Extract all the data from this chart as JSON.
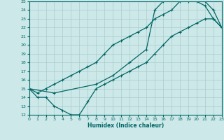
{
  "title": "",
  "xlabel": "Humidex (Indice chaleur)",
  "bg_color": "#cce8e8",
  "grid_color": "#aacccc",
  "line_color": "#006666",
  "xmin": 0,
  "xmax": 23,
  "ymin": 12,
  "ymax": 25,
  "line1_x": [
    0,
    1,
    2,
    3,
    4,
    5,
    6,
    7,
    8,
    9,
    10,
    11,
    12,
    13,
    14,
    15,
    16,
    17,
    18,
    19,
    20,
    21,
    22,
    23
  ],
  "line1_y": [
    15,
    14,
    14,
    13,
    12.5,
    12,
    12,
    13.5,
    15,
    15.5,
    16,
    16.5,
    17,
    17.5,
    18,
    19,
    20,
    21,
    21.5,
    22,
    22.5,
    23,
    23,
    22
  ],
  "line2_x": [
    0,
    1,
    2,
    3,
    4,
    5,
    6,
    7,
    8,
    9,
    10,
    11,
    12,
    13,
    14,
    15,
    16,
    17,
    18,
    19,
    20,
    21,
    22,
    23
  ],
  "line2_y": [
    15,
    14.5,
    15,
    15.5,
    16,
    16.5,
    17,
    17.5,
    18,
    19,
    20,
    20.5,
    21,
    21.5,
    22,
    23,
    23.5,
    24,
    25,
    25,
    25.5,
    25,
    24,
    22
  ],
  "line3_x": [
    0,
    3,
    8,
    10,
    12,
    14,
    15,
    16,
    17,
    18,
    19,
    20,
    21,
    22,
    23
  ],
  "line3_y": [
    15,
    14.5,
    15.5,
    16.5,
    18,
    19.5,
    24,
    25,
    25.5,
    25.5,
    25.5,
    25,
    24.5,
    23,
    22
  ]
}
